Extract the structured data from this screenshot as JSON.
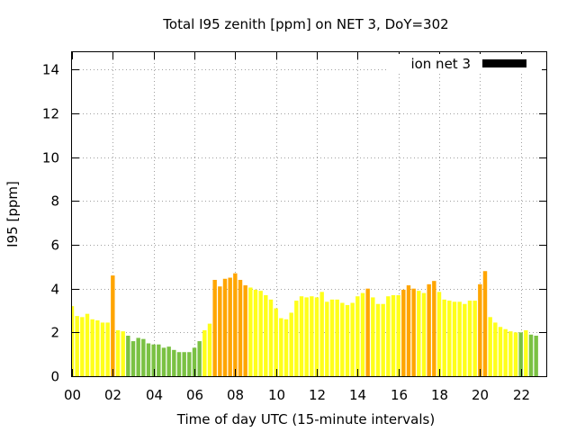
{
  "chart_data": {
    "type": "bar",
    "title": "Total I95 zenith [ppm] on NET 3, DoY=302",
    "xlabel": "Time of day UTC (15-minute intervals)",
    "ylabel": "I95 [ppm]",
    "xlim": [
      0,
      23.25
    ],
    "ylim": [
      0,
      14.8
    ],
    "grid": true,
    "legend": {
      "position": "top-right",
      "label": "ion net 3"
    },
    "x_ticks": [
      "00",
      "02",
      "04",
      "06",
      "08",
      "10",
      "12",
      "14",
      "16",
      "18",
      "20",
      "22"
    ],
    "y_ticks": [
      "0",
      "2",
      "4",
      "6",
      "8",
      "10",
      "12",
      "14"
    ],
    "interval_hours": 0.25,
    "level_colors": {
      "green": "#7ac143",
      "yellow": "#ffff1a",
      "orange": "#ffa500"
    },
    "values": [
      3.2,
      2.75,
      2.7,
      2.85,
      2.6,
      2.55,
      2.45,
      2.45,
      4.6,
      2.1,
      2.05,
      1.85,
      1.6,
      1.75,
      1.7,
      1.5,
      1.45,
      1.45,
      1.3,
      1.35,
      1.2,
      1.1,
      1.1,
      1.1,
      1.3,
      1.6,
      2.1,
      2.4,
      4.4,
      4.1,
      4.45,
      4.5,
      4.7,
      4.4,
      4.15,
      4.05,
      3.95,
      3.9,
      3.7,
      3.5,
      3.1,
      2.65,
      2.6,
      2.9,
      3.45,
      3.65,
      3.6,
      3.65,
      3.6,
      3.85,
      3.4,
      3.5,
      3.5,
      3.35,
      3.25,
      3.35,
      3.65,
      3.8,
      4.0,
      3.6,
      3.3,
      3.3,
      3.65,
      3.7,
      3.7,
      3.95,
      4.15,
      4.0,
      3.9,
      3.8,
      4.2,
      4.35,
      3.85,
      3.5,
      3.45,
      3.4,
      3.4,
      3.3,
      3.45,
      3.45,
      4.2,
      4.8,
      2.7,
      2.45,
      2.25,
      2.15,
      2.05,
      2.0,
      2.0,
      2.1,
      1.9,
      1.85
    ],
    "levels": [
      "yellow",
      "yellow",
      "yellow",
      "yellow",
      "yellow",
      "yellow",
      "yellow",
      "yellow",
      "orange",
      "yellow",
      "yellow",
      "green",
      "green",
      "green",
      "green",
      "green",
      "green",
      "green",
      "green",
      "green",
      "green",
      "green",
      "green",
      "green",
      "green",
      "green",
      "yellow",
      "yellow",
      "orange",
      "orange",
      "orange",
      "orange",
      "orange",
      "orange",
      "orange",
      "yellow",
      "yellow",
      "yellow",
      "yellow",
      "yellow",
      "yellow",
      "yellow",
      "yellow",
      "yellow",
      "yellow",
      "yellow",
      "yellow",
      "yellow",
      "yellow",
      "yellow",
      "yellow",
      "yellow",
      "yellow",
      "yellow",
      "yellow",
      "yellow",
      "yellow",
      "yellow",
      "orange",
      "yellow",
      "yellow",
      "yellow",
      "yellow",
      "yellow",
      "yellow",
      "orange",
      "orange",
      "orange",
      "yellow",
      "yellow",
      "orange",
      "orange",
      "yellow",
      "yellow",
      "yellow",
      "yellow",
      "yellow",
      "yellow",
      "yellow",
      "yellow",
      "orange",
      "orange",
      "yellow",
      "yellow",
      "yellow",
      "yellow",
      "yellow",
      "yellow",
      "green",
      "yellow",
      "green",
      "green"
    ]
  }
}
